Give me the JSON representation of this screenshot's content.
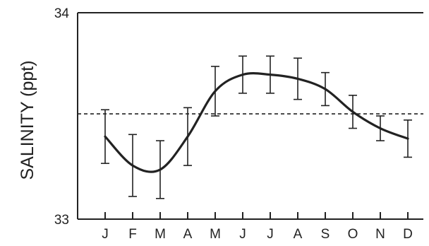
{
  "chart_data": {
    "type": "line",
    "title": "",
    "xlabel": "",
    "ylabel": "SALINITY (ppt)",
    "ylim": [
      33,
      34
    ],
    "y_ticks": [
      "33",
      "34"
    ],
    "categories": [
      "J",
      "F",
      "M",
      "A",
      "M",
      "J",
      "J",
      "A",
      "S",
      "O",
      "N",
      "D"
    ],
    "series": [
      {
        "values": [
          33.4,
          33.26,
          33.24,
          33.4,
          33.62,
          33.7,
          33.7,
          33.68,
          33.63,
          33.52,
          33.44,
          33.39
        ],
        "error": [
          0.13,
          0.15,
          0.14,
          0.14,
          0.12,
          0.09,
          0.09,
          0.1,
          0.08,
          0.08,
          0.06,
          0.09
        ]
      }
    ],
    "reference_line": {
      "value": 33.51,
      "style": "dashed"
    },
    "grid": false,
    "colors": {
      "line": "#222222",
      "axis": "#222222",
      "background": "#ffffff"
    }
  }
}
